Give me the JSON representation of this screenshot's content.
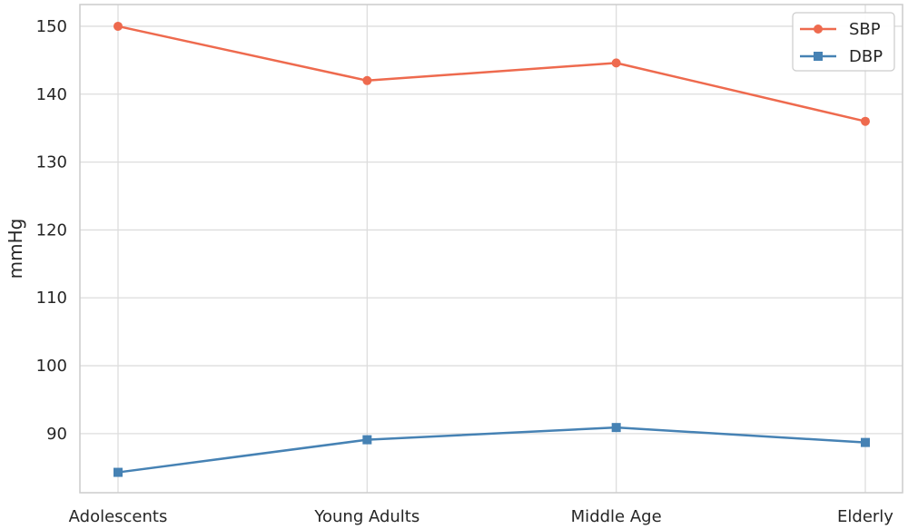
{
  "chart_data": {
    "type": "line",
    "categories": [
      "Adolescents",
      "Young Adults",
      "Middle Age",
      "Elderly"
    ],
    "series": [
      {
        "name": "SBP",
        "values": [
          150.0,
          142.0,
          144.6,
          136.0
        ],
        "color": "#ee6a4e",
        "marker": "circle"
      },
      {
        "name": "DBP",
        "values": [
          84.3,
          89.1,
          90.9,
          88.7
        ],
        "color": "#4682b4",
        "marker": "square"
      }
    ],
    "ylabel": "mmHg",
    "xlabel": "",
    "ylim": [
      81.3,
      153.2
    ],
    "yticks": [
      90,
      100,
      110,
      120,
      130,
      140,
      150
    ],
    "grid": true,
    "legend": "top-right"
  }
}
